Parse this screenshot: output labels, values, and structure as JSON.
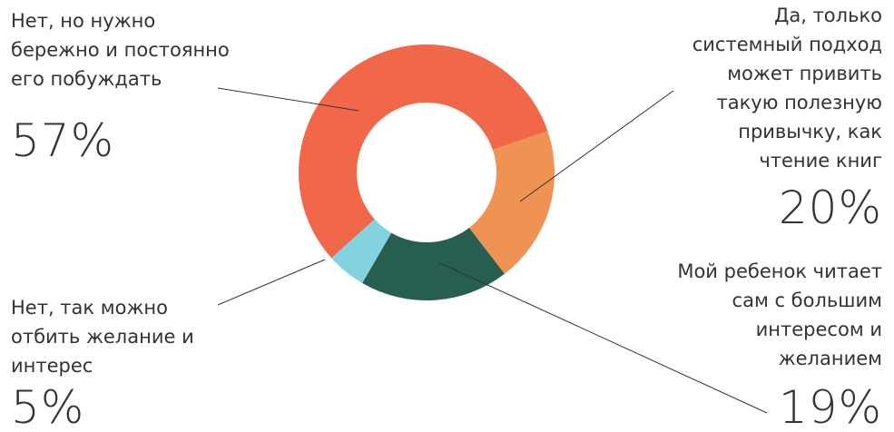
{
  "chart_data": {
    "type": "pie",
    "donut": true,
    "labels": [
      [
        "Нет, но нужно",
        "бережно и постоянно",
        "его побуждать"
      ],
      [
        "Да, только",
        "системный подход",
        "может привить",
        "такую полезную",
        "привычку, как",
        "чтение книг"
      ],
      [
        "Мой ребенок читает",
        "сам с большим",
        "интересом и",
        "желанием"
      ],
      [
        "Нет, так можно",
        "отбить желание и",
        "интерес"
      ]
    ],
    "values": [
      57,
      20,
      19,
      5
    ],
    "value_labels": [
      "57%",
      "20%",
      "19%",
      "5%"
    ],
    "colors": [
      "#f0674a",
      "#ef9354",
      "#285e4f",
      "#83d2e0"
    ]
  }
}
